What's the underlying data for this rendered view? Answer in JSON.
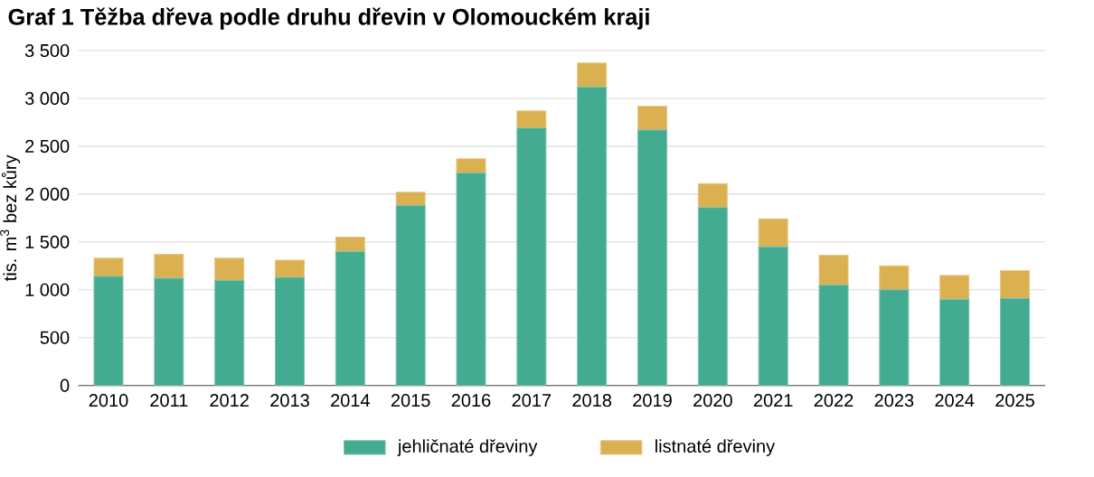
{
  "chart_data": {
    "type": "bar",
    "title": "Graf 1 Těžba dřeva podle druhu dřevin v Olomouckém kraji",
    "ylabel": "tis. m$^{3}$ bez kůry",
    "categories": [
      "2010",
      "2011",
      "2012",
      "2013",
      "2014",
      "2015",
      "2016",
      "2017",
      "2018",
      "2019",
      "2020",
      "2021",
      "2022",
      "2023",
      "2024",
      "2025"
    ],
    "series": [
      {
        "name": "jehličnaté dřeviny",
        "color": "#43ab8f",
        "values": [
          1140,
          1120,
          1100,
          1130,
          1400,
          1880,
          2220,
          2690,
          3120,
          2670,
          1860,
          1450,
          1050,
          1000,
          900,
          910
        ]
      },
      {
        "name": "listnaté dřeviny",
        "color": "#dbb050",
        "values": [
          190,
          250,
          230,
          180,
          150,
          140,
          150,
          180,
          250,
          250,
          250,
          290,
          310,
          250,
          250,
          290
        ]
      }
    ],
    "stacked": true,
    "ylim": [
      0,
      3500
    ],
    "yticks": [
      0,
      500,
      {
        "value": 1000,
        "label": "1 000"
      },
      {
        "value": 1500,
        "label": "1 500"
      },
      {
        "value": 2000,
        "label": "2 000"
      },
      {
        "value": 2500,
        "label": "2 500"
      },
      {
        "value": 3000,
        "label": "3 000"
      },
      {
        "value": 3500,
        "label": "3 500"
      }
    ],
    "grid": "y",
    "legend": "bottom"
  }
}
